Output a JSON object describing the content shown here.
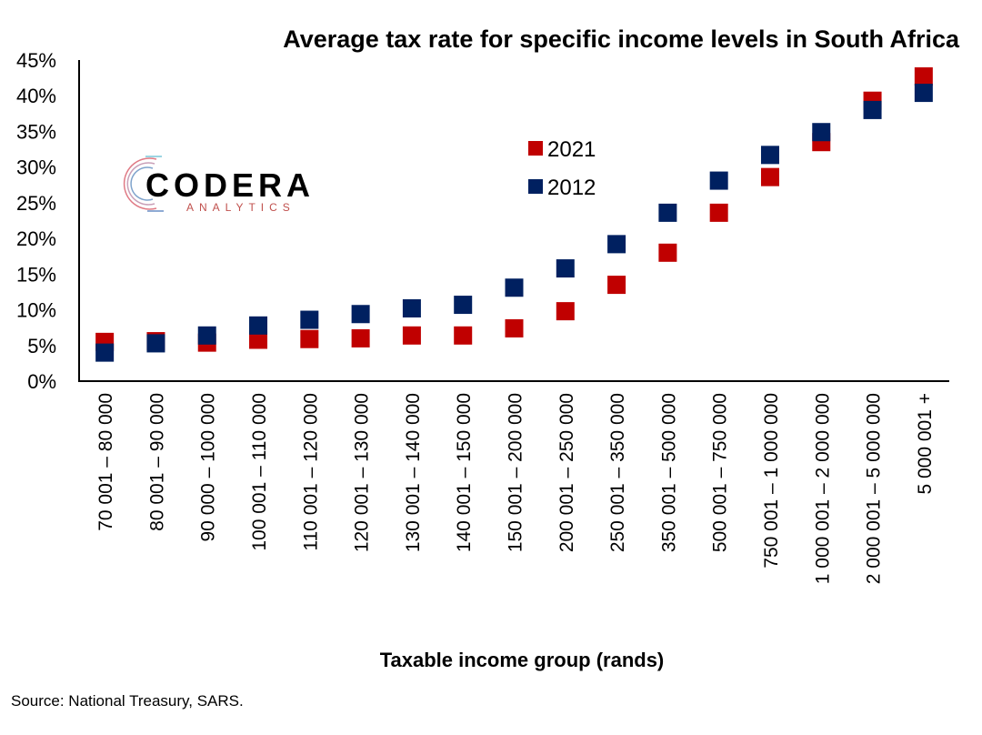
{
  "chart_data": {
    "type": "scatter",
    "title": "Average tax rate for specific income levels in South Africa",
    "xlabel": "Taxable income group (rands)",
    "ylabel": "",
    "ylim": [
      0,
      45
    ],
    "yticks": [
      "0%",
      "5%",
      "10%",
      "15%",
      "20%",
      "25%",
      "30%",
      "35%",
      "40%",
      "45%"
    ],
    "ytick_values": [
      0,
      5,
      10,
      15,
      20,
      25,
      30,
      35,
      40,
      45
    ],
    "categories": [
      "70 001 – 80 000",
      "80 001 – 90 000",
      "90 000 – 100 000",
      "100 001 – 110 000",
      "110 001 – 120 000",
      "120 001 – 130 000",
      "130 001 – 140 000",
      "140 001 – 150 000",
      "150 001 – 200 000",
      "200 001 – 250 000",
      "250 001 – 350 000",
      "350 001 – 500 000",
      "500 001 – 750 000",
      "750 001 – 1 000 000",
      "1 000 001 – 2 000 000",
      "2 000 001 – 5 000 000",
      "5 000 001 +"
    ],
    "series": [
      {
        "name": "2021",
        "color": "#C00000",
        "values": [
          5.5,
          5.6,
          5.4,
          5.8,
          5.9,
          6.0,
          6.4,
          6.4,
          7.4,
          9.8,
          13.5,
          18.0,
          23.6,
          28.6,
          33.5,
          39.3,
          42.7
        ]
      },
      {
        "name": "2012",
        "color": "#002060",
        "values": [
          4.0,
          5.3,
          6.4,
          7.8,
          8.6,
          9.4,
          10.2,
          10.7,
          13.1,
          15.8,
          19.2,
          23.6,
          28.1,
          31.7,
          34.9,
          38.0,
          40.4
        ]
      }
    ],
    "legend": "upper-center",
    "grid": false
  },
  "source": "Source: National Treasury, SARS.",
  "logo": {
    "main": "CODERA",
    "sub": "ANALYTICS"
  }
}
